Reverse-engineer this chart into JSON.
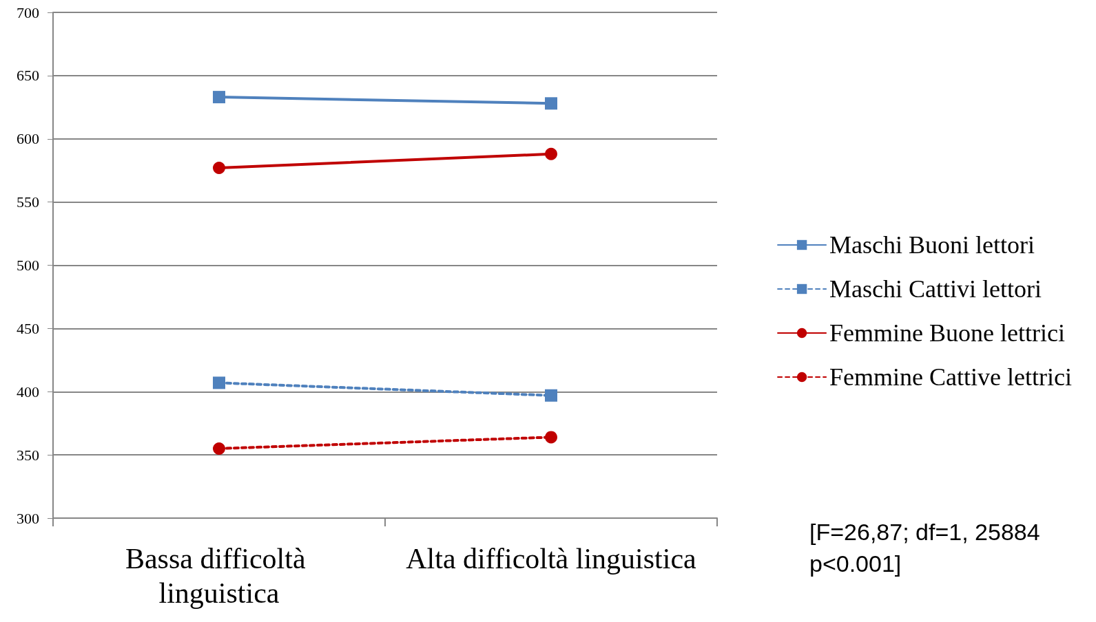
{
  "chart_data": {
    "type": "line",
    "categories": [
      "Bassa difficoltà linguistica",
      "Alta difficoltà linguistica"
    ],
    "series": [
      {
        "name": "Maschi Buoni lettori",
        "color": "#4f81bd",
        "values": [
          633,
          628
        ],
        "marker": "square",
        "line_style": "solid"
      },
      {
        "name": "Maschi Cattivi lettori",
        "color": "#4f81bd",
        "values": [
          407,
          397
        ],
        "marker": "square",
        "line_style": "dashed"
      },
      {
        "name": "Femmine Buone lettrici",
        "color": "#c00000",
        "values": [
          577,
          588
        ],
        "marker": "circle",
        "line_style": "solid"
      },
      {
        "name": "Femmine Cattive lettrici",
        "color": "#c00000",
        "values": [
          355,
          364
        ],
        "marker": "circle",
        "line_style": "dashed"
      }
    ],
    "ylim": [
      300,
      700
    ],
    "yticks": [
      300,
      350,
      400,
      450,
      500,
      550,
      600,
      650,
      700
    ],
    "grid": "y",
    "legend": "right",
    "annotations": [
      "[F=26,87; df=1, 25884\np<0.001]"
    ]
  }
}
